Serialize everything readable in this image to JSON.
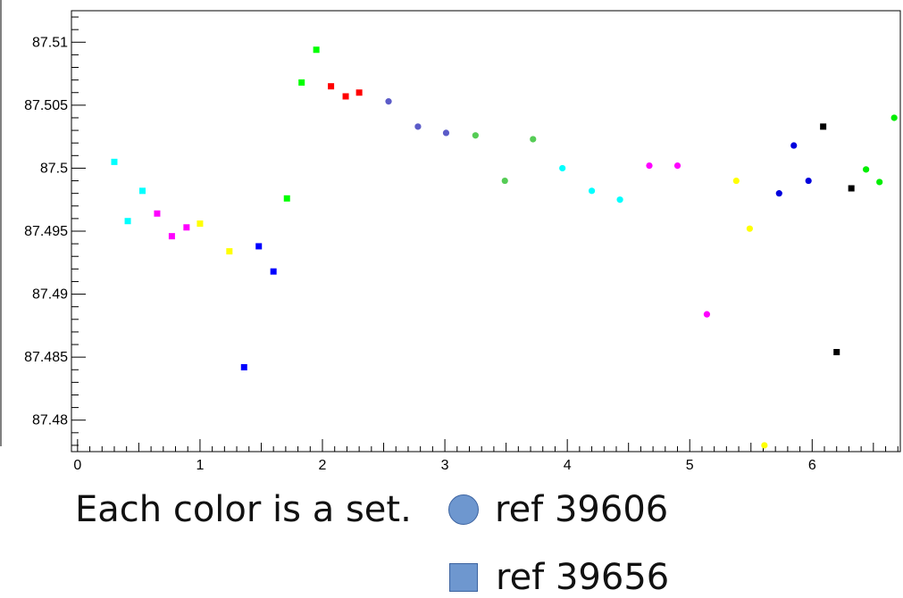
{
  "chart_data": {
    "type": "scatter",
    "xlim": [
      -0.05,
      6.72
    ],
    "ylim": [
      87.4775,
      87.5125
    ],
    "x_ticks": [
      0,
      1,
      2,
      3,
      4,
      5,
      6
    ],
    "y_ticks": [
      87.48,
      87.485,
      87.49,
      87.495,
      87.5,
      87.505,
      87.51
    ],
    "x_tick_labels": [
      "0",
      "1",
      "2",
      "3",
      "4",
      "5",
      "6"
    ],
    "y_tick_labels": [
      "87.48",
      "87.485",
      "87.49",
      "87.495",
      "87.5",
      "87.505",
      "87.51"
    ],
    "grid": false,
    "note": "Each color is a set.",
    "legend": [
      {
        "label": "ref 39606",
        "marker": "circle"
      },
      {
        "label": "ref 39656",
        "marker": "square"
      }
    ],
    "colors": {
      "legend_marker": "#6e97cf",
      "cyan": "#00ffff",
      "magenta": "#ff00ff",
      "yellow": "#ffff00",
      "blue": "#0000ff",
      "green": "#00ff00",
      "red": "#ff0000",
      "slate": "#5b5bc8",
      "mid_green": "#55cc55",
      "black": "#000000",
      "dark_blue": "#0000dd"
    },
    "series": [
      {
        "marker": "square",
        "color": "#00ffff",
        "x": [
          0.3,
          0.41,
          0.53
        ],
        "y": [
          87.5005,
          87.4958,
          87.4982
        ]
      },
      {
        "marker": "square",
        "color": "#ff00ff",
        "x": [
          0.65,
          0.77,
          0.89
        ],
        "y": [
          87.4964,
          87.4946,
          87.4953
        ]
      },
      {
        "marker": "square",
        "color": "#ffff00",
        "x": [
          1.0,
          1.24
        ],
        "y": [
          87.4956,
          87.4934
        ]
      },
      {
        "marker": "square",
        "color": "#0000ff",
        "x": [
          1.36,
          1.48,
          1.6
        ],
        "y": [
          87.4842,
          87.4938,
          87.4918
        ]
      },
      {
        "marker": "square",
        "color": "#00ff00",
        "x": [
          1.71,
          1.83,
          1.95
        ],
        "y": [
          87.4976,
          87.5068,
          87.5094
        ]
      },
      {
        "marker": "square",
        "color": "#ff0000",
        "x": [
          2.07,
          2.19,
          2.3
        ],
        "y": [
          87.5065,
          87.5057,
          87.506
        ]
      },
      {
        "marker": "circle",
        "color": "#5b5bc8",
        "x": [
          2.54,
          2.78,
          3.01
        ],
        "y": [
          87.5053,
          87.5033,
          87.5028
        ]
      },
      {
        "marker": "circle",
        "color": "#55cc55",
        "x": [
          3.25,
          3.49,
          3.72
        ],
        "y": [
          87.5026,
          87.499,
          87.5023
        ]
      },
      {
        "marker": "circle",
        "color": "#00ffff",
        "x": [
          3.96,
          4.2,
          4.43
        ],
        "y": [
          87.5,
          87.4982,
          87.4975
        ]
      },
      {
        "marker": "circle",
        "color": "#ff00ff",
        "x": [
          4.67,
          4.9,
          5.14
        ],
        "y": [
          87.5002,
          87.5002,
          87.4884
        ]
      },
      {
        "marker": "circle",
        "color": "#ffff00",
        "x": [
          5.38,
          5.49,
          5.61
        ],
        "y": [
          87.499,
          87.4952,
          87.478
        ]
      },
      {
        "marker": "circle",
        "color": "#0000dd",
        "x": [
          5.73,
          5.85,
          5.97
        ],
        "y": [
          87.498,
          87.5018,
          87.499
        ]
      },
      {
        "marker": "square",
        "color": "#000000",
        "x": [
          6.09,
          6.2,
          6.32
        ],
        "y": [
          87.5033,
          87.4854,
          87.4984
        ]
      },
      {
        "marker": "circle",
        "color": "#00ee00",
        "x": [
          6.44,
          6.55,
          6.67
        ],
        "y": [
          87.4999,
          87.4989,
          87.504
        ]
      }
    ]
  }
}
